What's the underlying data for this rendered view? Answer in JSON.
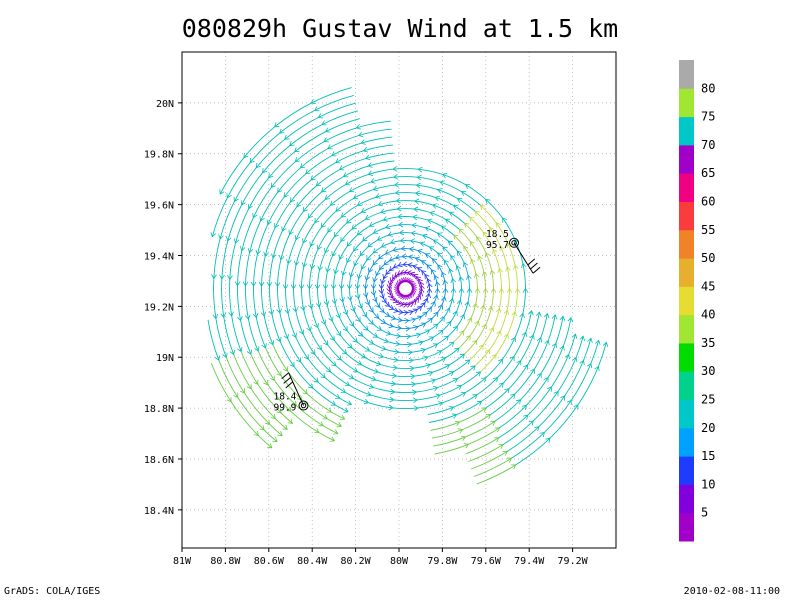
{
  "title": "080829h Gustav Wind at 1.5 km",
  "footer": {
    "left": "GrADS: COLA/IGES",
    "right": "2010-02-08-11:00"
  },
  "map": {
    "lon_range": [
      -81.0,
      -79.0
    ],
    "lat_range": [
      18.25,
      20.2
    ],
    "x_tick_labels": [
      "81W",
      "80.8W",
      "80.6W",
      "80.4W",
      "80.2W",
      "80W",
      "79.8W",
      "79.6W",
      "79.4W",
      "79.2W"
    ],
    "x_tick_values": [
      -81.0,
      -80.8,
      -80.6,
      -80.4,
      -80.2,
      -80.0,
      -79.8,
      -79.6,
      -79.4,
      -79.2
    ],
    "y_tick_labels": [
      "18.4N",
      "18.6N",
      "18.8N",
      "19N",
      "19.2N",
      "19.4N",
      "19.6N",
      "19.8N",
      "20N"
    ],
    "y_tick_values": [
      18.4,
      18.6,
      18.8,
      19.0,
      19.2,
      19.4,
      19.6,
      19.8,
      20.0
    ],
    "grid": true,
    "storm_center": {
      "lon": -79.97,
      "lat": 19.27
    },
    "stations": [
      {
        "lon": -79.47,
        "lat": 19.45,
        "value1": "18.5",
        "value2": "95.7",
        "barb_dir": "southeast"
      },
      {
        "lon": -80.44,
        "lat": 18.81,
        "value1": "18.4",
        "value2": "99.9",
        "barb_dir": "northwest"
      }
    ]
  },
  "colorbar": {
    "labels": [
      "5",
      "10",
      "15",
      "20",
      "25",
      "30",
      "35",
      "40",
      "45",
      "50",
      "55",
      "60",
      "65",
      "70",
      "75",
      "80"
    ],
    "colors": [
      "#a000c8",
      "#8200dc",
      "#1e3cff",
      "#00a0ff",
      "#00c8c8",
      "#00d28c",
      "#00dc00",
      "#a0e632",
      "#e6dc32",
      "#e6af2d",
      "#f08228",
      "#fa3c3c",
      "#f00082",
      "#a000c8",
      "#00c8c8",
      "#a0e632",
      "#aaaaaa"
    ]
  }
}
